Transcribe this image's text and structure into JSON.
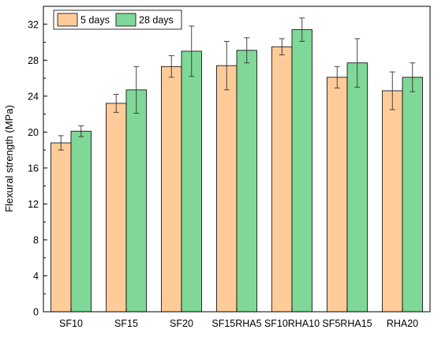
{
  "chart_data": {
    "type": "bar",
    "categories": [
      "SF10",
      "SF15",
      "SF20",
      "SF15RHA5",
      "SF10RHA10",
      "SF5RHA15",
      "RHA20"
    ],
    "series": [
      {
        "name": "5 days",
        "color": "#FFCC99",
        "values": [
          18.8,
          23.2,
          27.3,
          27.4,
          29.5,
          26.1,
          24.6
        ],
        "errors": [
          0.8,
          1.0,
          1.2,
          2.7,
          0.9,
          1.2,
          2.1
        ]
      },
      {
        "name": "28 days",
        "color": "#7FD897",
        "values": [
          20.1,
          24.7,
          29.0,
          29.1,
          31.4,
          27.7,
          26.1
        ],
        "errors": [
          0.6,
          2.6,
          2.8,
          1.4,
          1.3,
          2.7,
          1.6
        ]
      }
    ],
    "title": "",
    "xlabel": "",
    "ylabel": "Flexural strength (MPa)",
    "ylim": [
      0,
      34
    ],
    "yticks": [
      0,
      4,
      8,
      12,
      16,
      20,
      24,
      28,
      32
    ],
    "grid": false,
    "legend": "top-left"
  }
}
